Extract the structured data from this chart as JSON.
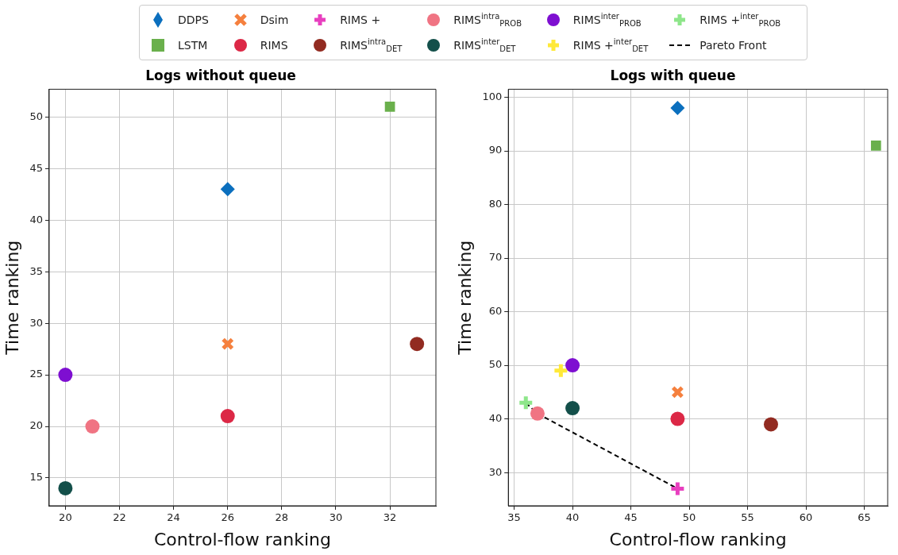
{
  "chart_data": [
    {
      "type": "scatter",
      "title": "Logs without queue",
      "xlabel": "Control-flow ranking",
      "ylabel": "Time ranking",
      "xlim": [
        19.4,
        33.7
      ],
      "ylim": [
        12.3,
        52.7
      ],
      "xticks": [
        20,
        22,
        24,
        26,
        28,
        30,
        32
      ],
      "yticks": [
        15,
        20,
        25,
        30,
        35,
        40,
        45,
        50
      ],
      "grid": true,
      "legend": "top",
      "series": [
        {
          "name": "DDPS",
          "color": "#0b6fbe",
          "marker": "diamond",
          "x": [
            26
          ],
          "values": [
            43
          ]
        },
        {
          "name": "LSTM",
          "color": "#6ab04c",
          "marker": "square",
          "x": [
            32
          ],
          "values": [
            51
          ]
        },
        {
          "name": "Dsim",
          "color": "#f5803e",
          "marker": "x",
          "x": [
            26
          ],
          "values": [
            28
          ]
        },
        {
          "name": "RIMS",
          "color": "#dc2846",
          "marker": "circle",
          "x": [
            26
          ],
          "values": [
            21
          ]
        },
        {
          "name": "RIMS$^{intra}$$_{DET}$",
          "color": "#922b21",
          "marker": "circle",
          "x": [
            33
          ],
          "values": [
            28
          ]
        },
        {
          "name": "RIMS$^{intra}$$_{PROB}$",
          "color": "#f07483",
          "marker": "circle",
          "x": [
            21
          ],
          "values": [
            20
          ]
        },
        {
          "name": "RIMS$^{inter}$$_{DET}$",
          "color": "#134f4a",
          "marker": "circle",
          "x": [
            20
          ],
          "values": [
            14
          ]
        },
        {
          "name": "RIMS$^{inter}$$_{PROB}$",
          "color": "#7e0fd1",
          "marker": "circle",
          "x": [
            20
          ],
          "values": [
            25
          ]
        }
      ]
    },
    {
      "type": "scatter",
      "title": "Logs with queue",
      "xlabel": "Control-flow ranking",
      "ylabel": "Time ranking",
      "xlim": [
        34.5,
        67
      ],
      "ylim": [
        23.8,
        101.5
      ],
      "xticks": [
        35,
        40,
        45,
        50,
        55,
        60,
        65
      ],
      "yticks": [
        30,
        40,
        50,
        60,
        70,
        80,
        90,
        100
      ],
      "grid": true,
      "legend": "top",
      "series": [
        {
          "name": "DDPS",
          "color": "#0b6fbe",
          "marker": "diamond",
          "x": [
            49
          ],
          "values": [
            98
          ]
        },
        {
          "name": "LSTM",
          "color": "#6ab04c",
          "marker": "square",
          "x": [
            66
          ],
          "values": [
            91
          ]
        },
        {
          "name": "Dsim",
          "color": "#f5803e",
          "marker": "x",
          "x": [
            49
          ],
          "values": [
            45
          ]
        },
        {
          "name": "RIMS",
          "color": "#dc2846",
          "marker": "circle",
          "x": [
            49
          ],
          "values": [
            40
          ]
        },
        {
          "name": "RIMS +",
          "color": "#e83fbf",
          "marker": "cross",
          "x": [
            49
          ],
          "values": [
            27
          ]
        },
        {
          "name": "RIMS$^{intra}$$_{DET}$",
          "color": "#922b21",
          "marker": "circle",
          "x": [
            57
          ],
          "values": [
            39
          ]
        },
        {
          "name": "RIMS$^{intra}$$_{PROB}$",
          "color": "#f07483",
          "marker": "circle",
          "x": [
            37
          ],
          "values": [
            41
          ]
        },
        {
          "name": "RIMS$^{inter}$$_{DET}$",
          "color": "#134f4a",
          "marker": "circle",
          "x": [
            40
          ],
          "values": [
            42
          ]
        },
        {
          "name": "RIMS$^{inter}$$_{PROB}$",
          "color": "#7e0fd1",
          "marker": "circle",
          "x": [
            40
          ],
          "values": [
            50
          ]
        },
        {
          "name": "RIMS +$^{inter}$$_{DET}$",
          "color": "#ffe939",
          "marker": "cross",
          "x": [
            39
          ],
          "values": [
            49
          ]
        },
        {
          "name": "RIMS +$^{inter}$$_{PROB}$",
          "color": "#8ee68a",
          "marker": "cross",
          "x": [
            36
          ],
          "values": [
            43
          ]
        },
        {
          "name": "Pareto Front",
          "type": "line",
          "color": "#000000",
          "marker": "none",
          "line_style": "dashed",
          "x": [
            36,
            37,
            49
          ],
          "values": [
            43,
            41,
            27
          ]
        }
      ]
    }
  ]
}
